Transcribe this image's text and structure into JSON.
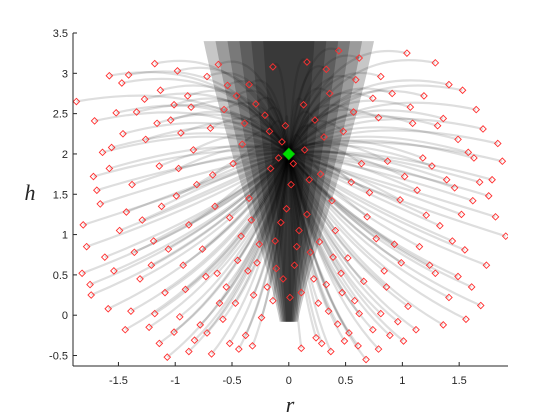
{
  "chart_data": {
    "type": "scatter",
    "title": "",
    "xlabel": "r",
    "ylabel": "h",
    "xlim": [
      -1.9,
      1.93
    ],
    "ylim": [
      -0.63,
      3.5
    ],
    "x_ticks": [
      -1.5,
      -1,
      -0.5,
      0,
      0.5,
      1,
      1.5
    ],
    "y_ticks": [
      -0.5,
      0,
      0.5,
      1,
      1.5,
      2,
      2.5,
      3,
      3.5
    ],
    "x_tick_labels": [
      "-1.5",
      "-1",
      "-0.5",
      "0",
      "0.5",
      "1",
      "1.5"
    ],
    "y_tick_labels": [
      "-0.5",
      "0",
      "0.5",
      "1",
      "1.5",
      "2",
      "2.5",
      "3",
      "3.5"
    ],
    "grid": false,
    "legend": "none",
    "colors": {
      "trajectory": "#000000",
      "endpoint_marker": "#ff3030",
      "origin_marker": "#00dd00",
      "axis": "#262626"
    },
    "origin_point": {
      "x": 0,
      "y": 2
    },
    "funnel_core": {
      "description": "dense trajectory core",
      "vertex": {
        "x": 0,
        "y": -0.08
      },
      "top": {
        "h": 3.4,
        "r_left": -0.75,
        "r_right": 0.75
      }
    },
    "series": [
      {
        "kind": "endpoints",
        "marker": "diamond-open",
        "points": [
          [
            -1.87,
            2.65
          ],
          [
            -1.58,
            2.97
          ],
          [
            -1.47,
            2.88
          ],
          [
            -1.41,
            2.98
          ],
          [
            -1.18,
            3.12
          ],
          [
            -1.13,
            2.79
          ],
          [
            -0.98,
            3.03
          ],
          [
            -0.89,
            2.72
          ],
          [
            -0.72,
            2.96
          ],
          [
            -0.62,
            3.11
          ],
          [
            -0.35,
            2.86
          ],
          [
            -0.14,
            3.08
          ],
          [
            0.16,
            3.14
          ],
          [
            0.33,
            3.05
          ],
          [
            0.44,
            3.28
          ],
          [
            0.62,
            3.19
          ],
          [
            0.81,
            2.96
          ],
          [
            1.04,
            3.25
          ],
          [
            1.29,
            3.13
          ],
          [
            1.41,
            2.86
          ],
          [
            1.53,
            2.79
          ],
          [
            1.65,
            2.55
          ],
          [
            1.71,
            2.31
          ],
          [
            1.84,
            2.13
          ],
          [
            1.88,
            1.91
          ],
          [
            1.91,
            0.98
          ],
          [
            1.79,
            1.68
          ],
          [
            1.62,
            1.42
          ],
          [
            1.55,
            0.81
          ],
          [
            1.49,
            0.48
          ],
          [
            1.41,
            0.22
          ],
          [
            1.33,
            1.11
          ],
          [
            1.24,
            0.62
          ],
          [
            1.18,
            1.95
          ],
          [
            1.09,
            2.38
          ],
          [
            0.98,
            1.43
          ],
          [
            0.93,
            0.88
          ],
          [
            0.86,
            0.35
          ],
          [
            0.81,
            0.02
          ],
          [
            0.74,
            -0.18
          ],
          [
            0.69,
            1.22
          ],
          [
            0.64,
            1.88
          ],
          [
            0.57,
            2.52
          ],
          [
            0.52,
            0.71
          ],
          [
            0.47,
            0.28
          ],
          [
            0.43,
            -0.11
          ],
          [
            0.38,
            1.42
          ],
          [
            0.31,
            2.21
          ],
          [
            0.27,
            0.91
          ],
          [
            0.22,
            0.45
          ],
          [
            0.18,
            1.68
          ],
          [
            0.13,
            2.61
          ],
          [
            0.09,
            1.05
          ],
          [
            0.05,
            0.62
          ],
          [
            -0.03,
            2.35
          ],
          [
            -0.07,
            1.15
          ],
          [
            -0.11,
            0.58
          ],
          [
            -0.16,
            1.82
          ],
          [
            -0.21,
            2.48
          ],
          [
            -0.26,
            0.88
          ],
          [
            -0.31,
            0.25
          ],
          [
            -0.35,
            1.45
          ],
          [
            -0.41,
            2.12
          ],
          [
            -0.45,
            0.68
          ],
          [
            -0.52,
            1.21
          ],
          [
            -0.57,
            2.55
          ],
          [
            -0.61,
            0.15
          ],
          [
            -0.67,
            1.74
          ],
          [
            -0.73,
            0.48
          ],
          [
            -0.78,
            -0.12
          ],
          [
            -0.84,
            2.05
          ],
          [
            -0.88,
            1.12
          ],
          [
            -0.93,
            0.62
          ],
          [
            -0.99,
            1.48
          ],
          [
            -1.04,
            2.42
          ],
          [
            -1.09,
            0.28
          ],
          [
            -1.14,
            1.85
          ],
          [
            -1.19,
            0.92
          ],
          [
            -1.26,
            2.18
          ],
          [
            -1.31,
            0.45
          ],
          [
            -1.38,
            1.62
          ],
          [
            -1.44,
            -0.18
          ],
          [
            -1.49,
            1.05
          ],
          [
            -1.56,
            2.08
          ],
          [
            -1.62,
            0.72
          ],
          [
            -1.69,
            1.55
          ],
          [
            -1.75,
            0.38
          ],
          [
            -1.81,
            1.12
          ],
          [
            -1.71,
            2.41
          ],
          [
            -1.52,
            2.51
          ],
          [
            -1.27,
            2.68
          ],
          [
            -0.95,
            2.26
          ],
          [
            -0.46,
            2.72
          ],
          [
            0.74,
            2.69
          ],
          [
            1.36,
            2.44
          ],
          [
            1.58,
            2.02
          ],
          [
            1.46,
            1.58
          ],
          [
            1.21,
            1.24
          ],
          [
            1.05,
            0.11
          ],
          [
            0.96,
            -0.08
          ],
          [
            0.61,
            -0.38
          ],
          [
            0.53,
            -0.22
          ],
          [
            0.35,
            0.05
          ],
          [
            -0.24,
            -0.03
          ],
          [
            -0.38,
            -0.25
          ],
          [
            -0.52,
            -0.35
          ],
          [
            -0.83,
            -0.31
          ],
          [
            -1.01,
            -0.21
          ],
          [
            -1.23,
            -0.15
          ],
          [
            -1.07,
            -0.52
          ],
          [
            0.11,
            -0.41
          ],
          [
            0.24,
            -0.28
          ],
          [
            0.68,
            -0.55
          ],
          [
            -0.14,
            0.18
          ],
          [
            0.02,
            1.62
          ],
          [
            0.16,
            1.25
          ],
          [
            -0.09,
            1.95
          ],
          [
            0.28,
            1.75
          ],
          [
            -0.33,
            1.18
          ],
          [
            0.41,
            1.05
          ],
          [
            -0.49,
            1.88
          ],
          [
            0.55,
            1.65
          ],
          [
            -0.65,
            1.35
          ],
          [
            0.71,
            1.52
          ],
          [
            -0.81,
            1.62
          ],
          [
            0.87,
            1.91
          ],
          [
            -0.97,
            1.82
          ],
          [
            1.02,
            1.72
          ],
          [
            -1.12,
            1.35
          ],
          [
            1.13,
            1.55
          ],
          [
            -1.29,
            1.18
          ],
          [
            1.26,
            1.85
          ],
          [
            -1.43,
            1.28
          ],
          [
            1.39,
            1.68
          ],
          [
            -1.58,
            1.82
          ],
          [
            1.52,
            1.25
          ],
          [
            -1.66,
            1.38
          ],
          [
            1.68,
            1.65
          ],
          [
            1.74,
            0.62
          ],
          [
            -1.78,
            0.85
          ],
          [
            1.61,
            0.35
          ],
          [
            -1.54,
            0.55
          ],
          [
            1.44,
            0.92
          ],
          [
            -1.36,
            0.78
          ],
          [
            1.29,
            0.52
          ],
          [
            -1.21,
            0.62
          ],
          [
            1.15,
            0.85
          ],
          [
            -1.06,
            0.82
          ],
          [
            0.99,
            0.65
          ],
          [
            -0.91,
            0.32
          ],
          [
            0.84,
            0.55
          ],
          [
            -0.76,
            0.82
          ],
          [
            0.77,
            0.95
          ],
          [
            -0.63,
            0.52
          ],
          [
            0.66,
            0.42
          ],
          [
            -0.55,
            0.35
          ],
          [
            0.58,
            0.18
          ],
          [
            -0.47,
            0.15
          ],
          [
            0.46,
            0.52
          ],
          [
            -0.42,
            0.98
          ],
          [
            0.39,
            0.72
          ],
          [
            -0.36,
            0.55
          ],
          [
            0.33,
            0.38
          ],
          [
            -0.28,
            0.65
          ],
          [
            0.26,
            0.15
          ],
          [
            -0.19,
            0.35
          ],
          [
            0.19,
            0.78
          ],
          [
            -0.12,
            0.92
          ],
          [
            0.11,
            0.28
          ],
          [
            -0.05,
            0.45
          ],
          [
            0.07,
            0.85
          ],
          [
            0.01,
            0.22
          ],
          [
            -0.02,
            1.32
          ],
          [
            0.04,
            1.88
          ],
          [
            -0.06,
            2.15
          ],
          [
            0.14,
            2.05
          ],
          [
            -0.17,
            2.28
          ],
          [
            0.23,
            2.42
          ],
          [
            -0.29,
            2.62
          ],
          [
            0.36,
            2.75
          ],
          [
            -0.39,
            2.38
          ],
          [
            0.48,
            2.28
          ],
          [
            -0.54,
            2.85
          ],
          [
            0.59,
            2.92
          ],
          [
            -0.69,
            2.32
          ],
          [
            0.79,
            2.45
          ],
          [
            -0.86,
            2.58
          ],
          [
            0.91,
            2.75
          ],
          [
            -1.01,
            2.61
          ],
          [
            1.07,
            2.58
          ],
          [
            -1.16,
            2.38
          ],
          [
            1.19,
            2.72
          ],
          [
            -1.34,
            2.52
          ],
          [
            1.31,
            2.35
          ],
          [
            -1.46,
            2.25
          ],
          [
            1.49,
            2.18
          ],
          [
            -1.64,
            2.02
          ],
          [
            1.63,
            1.95
          ],
          [
            -1.72,
            1.72
          ],
          [
            1.76,
            1.48
          ],
          [
            -1.82,
            0.52
          ],
          [
            1.82,
            1.22
          ],
          [
            -1.74,
            0.25
          ],
          [
            1.69,
            0.12
          ],
          [
            -1.59,
            0.08
          ],
          [
            1.56,
            -0.05
          ],
          [
            -1.39,
            0.05
          ],
          [
            1.36,
            -0.12
          ],
          [
            -1.18,
            0.02
          ],
          [
            1.12,
            -0.18
          ],
          [
            -0.96,
            -0.02
          ],
          [
            0.89,
            -0.25
          ],
          [
            -0.72,
            -0.22
          ],
          [
            0.62,
            0.02
          ],
          [
            -0.58,
            -0.05
          ],
          [
            0.49,
            -0.32
          ],
          [
            -0.44,
            -0.42
          ],
          [
            0.37,
            -0.45
          ],
          [
            -0.32,
            -0.38
          ],
          [
            0.29,
            -0.35
          ],
          [
            -0.68,
            -0.48
          ],
          [
            0.79,
            -0.42
          ],
          [
            -0.88,
            -0.45
          ],
          [
            1.01,
            -0.32
          ],
          [
            -1.14,
            -0.35
          ]
        ]
      }
    ]
  }
}
